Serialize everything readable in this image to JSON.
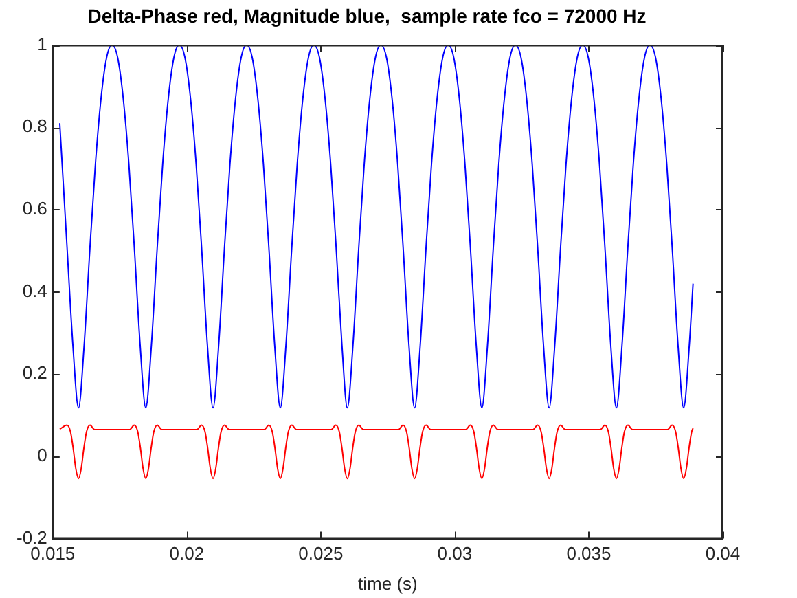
{
  "chart_data": {
    "type": "line",
    "title": "Delta-Phase red, Magnitude blue,  sample rate fco = 72000 Hz",
    "xlabel": "time (s)",
    "xlim": [
      0.015,
      0.04
    ],
    "xticks": [
      0.015,
      0.02,
      0.025,
      0.03,
      0.035,
      0.04
    ],
    "ylim": [
      -0.2,
      1
    ],
    "yticks": [
      -0.2,
      0,
      0.2,
      0.4,
      0.6,
      0.8,
      1
    ],
    "grid": false,
    "legend": false,
    "marker": "none",
    "line_style": "solid",
    "series": [
      {
        "color": "#0000ff",
        "x": [
          0.01526,
          0.01554,
          0.01575,
          0.01596,
          0.01617,
          0.01638,
          0.01659,
          0.0168,
          0.01701,
          0.01721,
          0.01742,
          0.01763,
          0.01784,
          0.01805,
          0.01826,
          0.01847,
          0.01868,
          0.01889,
          0.0191,
          0.01931,
          0.01952,
          0.01972,
          0.01993,
          0.02014,
          0.02035,
          0.02056,
          0.02077,
          0.02098,
          0.02119,
          0.0214,
          0.02161,
          0.02182,
          0.02203,
          0.02223,
          0.02244,
          0.02265,
          0.02286,
          0.02307,
          0.02328,
          0.02349,
          0.0237,
          0.02391,
          0.02412,
          0.02433,
          0.02454,
          0.02474,
          0.02495,
          0.02516,
          0.02537,
          0.02558,
          0.02579,
          0.02599,
          0.0262,
          0.02641,
          0.02662,
          0.02683,
          0.02704,
          0.02724,
          0.02745,
          0.02766,
          0.02787,
          0.02808,
          0.02829,
          0.0285,
          0.02871,
          0.02892,
          0.02913,
          0.02934,
          0.02955,
          0.02975,
          0.02996,
          0.03017,
          0.03038,
          0.03059,
          0.0308,
          0.03101,
          0.03122,
          0.03143,
          0.03164,
          0.03185,
          0.03206,
          0.03226,
          0.03247,
          0.03268,
          0.03289,
          0.0331,
          0.03331,
          0.03352,
          0.03373,
          0.03394,
          0.03415,
          0.03436,
          0.03457,
          0.03477,
          0.03498,
          0.03519,
          0.0354,
          0.03561,
          0.03582,
          0.03603,
          0.03624,
          0.03645,
          0.03666,
          0.03687,
          0.03708,
          0.03728,
          0.03749,
          0.0377,
          0.03791,
          0.03812,
          0.03833,
          0.03854,
          0.03875,
          0.03889
        ],
        "values": [
          0.81,
          0.5,
          0.27,
          0.118,
          0.27,
          0.5,
          0.71,
          0.87,
          0.97,
          1,
          0.97,
          0.87,
          0.71,
          0.5,
          0.27,
          0.118,
          0.27,
          0.5,
          0.71,
          0.87,
          0.97,
          1,
          0.97,
          0.87,
          0.71,
          0.5,
          0.27,
          0.118,
          0.27,
          0.5,
          0.71,
          0.87,
          0.97,
          1,
          0.97,
          0.87,
          0.71,
          0.5,
          0.27,
          0.118,
          0.27,
          0.5,
          0.71,
          0.87,
          0.97,
          1,
          0.97,
          0.87,
          0.71,
          0.5,
          0.27,
          0.118,
          0.27,
          0.5,
          0.71,
          0.87,
          0.97,
          1,
          0.97,
          0.87,
          0.71,
          0.5,
          0.27,
          0.118,
          0.27,
          0.5,
          0.71,
          0.87,
          0.97,
          1,
          0.97,
          0.87,
          0.71,
          0.5,
          0.27,
          0.118,
          0.27,
          0.5,
          0.71,
          0.87,
          0.97,
          1,
          0.97,
          0.87,
          0.71,
          0.5,
          0.27,
          0.118,
          0.27,
          0.5,
          0.71,
          0.87,
          0.97,
          1,
          0.97,
          0.87,
          0.71,
          0.5,
          0.27,
          0.118,
          0.27,
          0.5,
          0.71,
          0.87,
          0.97,
          1,
          0.97,
          0.87,
          0.71,
          0.5,
          0.27,
          0.118,
          0.27,
          0.42
        ]
      },
      {
        "color": "#ff0000",
        "x": [
          0.01526,
          0.01553,
          0.01566,
          0.01576,
          0.01586,
          0.01596,
          0.01606,
          0.01616,
          0.01626,
          0.01639,
          0.01656,
          0.01787,
          0.01804,
          0.01817,
          0.01827,
          0.01837,
          0.01847,
          0.01857,
          0.01867,
          0.01877,
          0.0189,
          0.01907,
          0.02038,
          0.02055,
          0.02068,
          0.02078,
          0.02088,
          0.02098,
          0.02108,
          0.02118,
          0.02128,
          0.02141,
          0.02158,
          0.02289,
          0.02306,
          0.02319,
          0.02329,
          0.02339,
          0.02349,
          0.02359,
          0.02369,
          0.02379,
          0.02392,
          0.02409,
          0.02539,
          0.02556,
          0.02569,
          0.02579,
          0.02589,
          0.02599,
          0.02609,
          0.02619,
          0.02629,
          0.02642,
          0.02659,
          0.0279,
          0.02807,
          0.0282,
          0.0283,
          0.0284,
          0.0285,
          0.0286,
          0.0287,
          0.0288,
          0.02893,
          0.0291,
          0.03041,
          0.03058,
          0.03071,
          0.03081,
          0.03091,
          0.03101,
          0.03111,
          0.03121,
          0.03131,
          0.03144,
          0.03161,
          0.03292,
          0.03309,
          0.03322,
          0.03332,
          0.03342,
          0.03352,
          0.03362,
          0.03372,
          0.03382,
          0.03395,
          0.03412,
          0.03543,
          0.0356,
          0.03573,
          0.03583,
          0.03593,
          0.03603,
          0.03613,
          0.03623,
          0.03633,
          0.03646,
          0.03663,
          0.03794,
          0.03811,
          0.03824,
          0.03834,
          0.03844,
          0.03854,
          0.03864,
          0.03874,
          0.03884,
          0.03889
        ],
        "values": [
          0.066,
          0.076,
          0.06,
          0.02,
          -0.03,
          -0.054,
          -0.03,
          0.02,
          0.06,
          0.076,
          0.065,
          0.065,
          0.076,
          0.06,
          0.02,
          -0.03,
          -0.054,
          -0.03,
          0.02,
          0.06,
          0.076,
          0.065,
          0.065,
          0.076,
          0.06,
          0.02,
          -0.03,
          -0.054,
          -0.03,
          0.02,
          0.06,
          0.076,
          0.065,
          0.065,
          0.076,
          0.06,
          0.02,
          -0.03,
          -0.054,
          -0.03,
          0.02,
          0.06,
          0.076,
          0.065,
          0.065,
          0.076,
          0.06,
          0.02,
          -0.03,
          -0.054,
          -0.03,
          0.02,
          0.06,
          0.076,
          0.065,
          0.065,
          0.076,
          0.06,
          0.02,
          -0.03,
          -0.054,
          -0.03,
          0.02,
          0.06,
          0.076,
          0.065,
          0.065,
          0.076,
          0.06,
          0.02,
          -0.03,
          -0.054,
          -0.03,
          0.02,
          0.06,
          0.076,
          0.065,
          0.065,
          0.076,
          0.06,
          0.02,
          -0.03,
          -0.054,
          -0.03,
          0.02,
          0.06,
          0.076,
          0.065,
          0.065,
          0.076,
          0.06,
          0.02,
          -0.03,
          -0.054,
          -0.03,
          0.02,
          0.06,
          0.076,
          0.065,
          0.065,
          0.076,
          0.06,
          0.02,
          -0.03,
          -0.054,
          -0.03,
          0.02,
          0.06,
          0.068
        ]
      }
    ]
  }
}
